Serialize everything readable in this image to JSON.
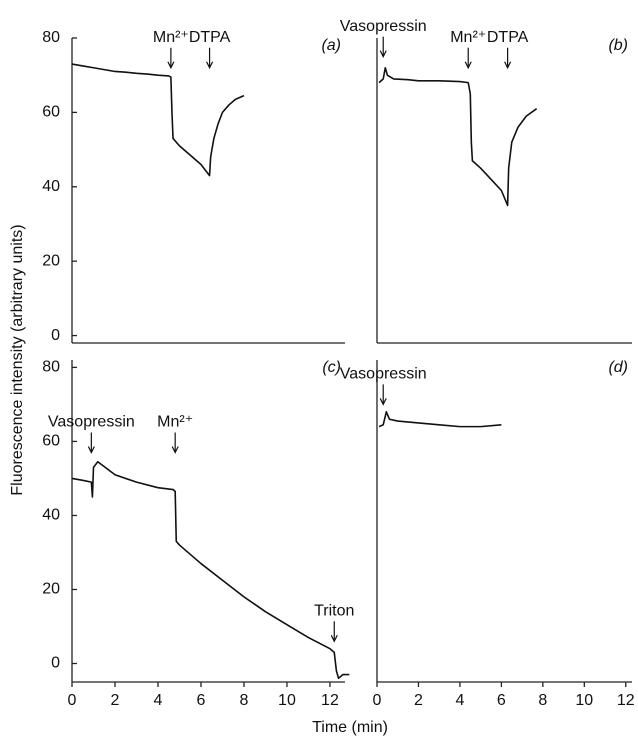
{
  "ylabel": "Fluorescence intensity (arbitrary units)",
  "xlabel": "Time (min)",
  "chart_data": [
    {
      "type": "line",
      "label": "(a)",
      "xlim": [
        0,
        12.7
      ],
      "ylim": [
        -2,
        80
      ],
      "yticks": [
        0,
        20,
        40,
        60,
        80
      ],
      "series": [
        {
          "color": "#111",
          "x": [
            0,
            0.5,
            1,
            1.5,
            2,
            2.5,
            3,
            3.5,
            4,
            4.5,
            4.6,
            4.65,
            4.7,
            5,
            5.5,
            6,
            6.4,
            6.45,
            6.6,
            6.8,
            7,
            7.3,
            7.6,
            8
          ],
          "values": [
            73,
            72.5,
            72,
            71.5,
            71,
            70.8,
            70.5,
            70.3,
            70,
            69.8,
            69.5,
            60,
            53,
            51,
            48.5,
            46,
            43,
            48,
            53,
            57,
            60,
            62,
            63.5,
            64.5
          ]
        }
      ],
      "annotations": [
        {
          "text": "Mn²⁺",
          "x": 4.6,
          "y": 72
        },
        {
          "text": "DTPA",
          "x": 6.4,
          "y": 72
        }
      ]
    },
    {
      "type": "line",
      "label": "(b)",
      "xlim": [
        0,
        12.3
      ],
      "ylim": [
        -2,
        80
      ],
      "series": [
        {
          "color": "#111",
          "x": [
            0.1,
            0.3,
            0.4,
            0.5,
            0.8,
            1.5,
            2,
            3,
            4,
            4.4,
            4.5,
            4.55,
            4.6,
            5,
            5.5,
            6,
            6.3,
            6.35,
            6.5,
            6.8,
            7.2,
            7.7
          ],
          "values": [
            68,
            69,
            72,
            70,
            69,
            68.8,
            68.5,
            68.5,
            68.3,
            68,
            65,
            52,
            47,
            45,
            42,
            39,
            35,
            45,
            52,
            56,
            59,
            61
          ]
        }
      ],
      "annotations": [
        {
          "text": "Vasopressin",
          "x": 0.3,
          "y": 75
        },
        {
          "text": "Mn²⁺",
          "x": 4.4,
          "y": 72
        },
        {
          "text": "DTPA",
          "x": 6.3,
          "y": 72
        }
      ]
    },
    {
      "type": "line",
      "label": "(c)",
      "xlim": [
        0,
        12.7
      ],
      "ylim": [
        -5,
        82
      ],
      "yticks": [
        0,
        20,
        40,
        60,
        80
      ],
      "xticks": [
        0,
        2,
        4,
        6,
        8,
        10,
        12
      ],
      "series": [
        {
          "color": "#111",
          "x": [
            0,
            0.5,
            0.9,
            0.95,
            1.0,
            1.2,
            2,
            3,
            4,
            4.7,
            4.8,
            4.85,
            5,
            6,
            7,
            8,
            9,
            10,
            11,
            12,
            12.2,
            12.3,
            12.4,
            12.6,
            12.9
          ],
          "values": [
            50,
            49.5,
            49,
            45,
            53,
            54.5,
            51,
            49,
            47.5,
            47,
            46.5,
            33,
            32,
            27,
            22.5,
            18,
            14,
            10.5,
            7,
            4,
            3,
            -2,
            -4,
            -3,
            -3
          ]
        }
      ],
      "annotations": [
        {
          "text": "Vasopressin",
          "x": 0.9,
          "y": 57
        },
        {
          "text": "Mn²⁺",
          "x": 4.8,
          "y": 57
        },
        {
          "text": "Triton",
          "x": 12.2,
          "y": 6
        }
      ]
    },
    {
      "type": "line",
      "label": "(d)",
      "xlim": [
        0,
        12.3
      ],
      "ylim": [
        -5,
        82
      ],
      "xticks": [
        0,
        2,
        4,
        6,
        8,
        10,
        12
      ],
      "series": [
        {
          "color": "#111",
          "x": [
            0.1,
            0.3,
            0.45,
            0.6,
            1,
            2,
            3,
            4,
            5,
            6
          ],
          "values": [
            64,
            64.5,
            68,
            66,
            65.5,
            65,
            64.5,
            64,
            64,
            64.5
          ]
        }
      ],
      "annotations": [
        {
          "text": "Vasopressin",
          "x": 0.3,
          "y": 70
        }
      ]
    }
  ]
}
